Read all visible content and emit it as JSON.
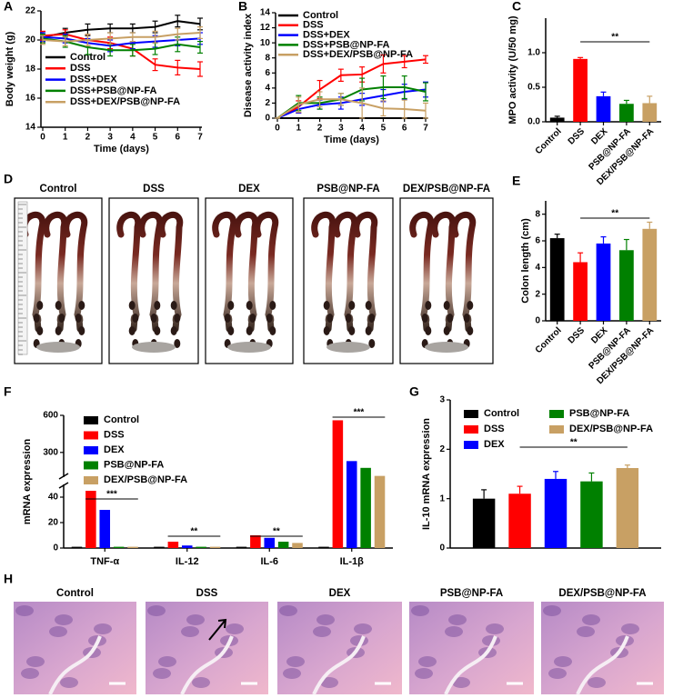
{
  "chart_data": [
    {
      "type": "line",
      "panel_label": "A",
      "x_label": "Time (days)",
      "y_label": "Body weight (g)",
      "x": [
        0,
        1,
        2,
        3,
        4,
        5,
        6,
        7
      ],
      "xlim": [
        0,
        7
      ],
      "xticks": [
        0,
        1,
        2,
        3,
        4,
        5,
        6,
        7
      ],
      "ylim": [
        14,
        22
      ],
      "yticks": [
        14,
        16,
        18,
        20,
        22
      ],
      "legend": "lower left",
      "series": [
        {
          "name": "Control",
          "color": "#000000",
          "values": [
            20.2,
            20.5,
            20.7,
            20.8,
            20.8,
            20.9,
            21.3,
            21.1
          ],
          "errors": [
            0.3,
            0.3,
            0.4,
            0.3,
            0.3,
            0.4,
            0.4,
            0.4
          ]
        },
        {
          "name": "DSS",
          "color": "#ff0000",
          "values": [
            20.3,
            20.4,
            20.0,
            19.8,
            19.4,
            18.3,
            18.1,
            18.0
          ],
          "errors": [
            0.3,
            0.3,
            0.4,
            0.4,
            0.5,
            0.4,
            0.5,
            0.5
          ]
        },
        {
          "name": "DSS+DEX",
          "color": "#0000ff",
          "values": [
            20.2,
            20.1,
            19.8,
            19.6,
            19.8,
            19.9,
            20.0,
            20.1
          ],
          "errors": [
            0.3,
            0.3,
            0.3,
            0.4,
            0.4,
            0.4,
            0.4,
            0.4
          ]
        },
        {
          "name": "DSS+PSB@NP-FA",
          "color": "#008000",
          "values": [
            20.1,
            19.9,
            19.5,
            19.3,
            19.3,
            19.4,
            19.7,
            19.5
          ],
          "errors": [
            0.3,
            0.4,
            0.5,
            0.4,
            0.4,
            0.4,
            0.5,
            0.4
          ]
        },
        {
          "name": "DSS+DEX/PSB@NP-FA",
          "color": "#c8a064",
          "values": [
            20.0,
            19.9,
            20.0,
            20.1,
            20.2,
            20.2,
            20.4,
            20.5
          ],
          "errors": [
            0.3,
            0.3,
            0.4,
            0.4,
            0.3,
            0.4,
            0.4,
            0.4
          ]
        }
      ]
    },
    {
      "type": "line",
      "panel_label": "B",
      "x_label": "Time (days)",
      "y_label": "Disease activity index",
      "x": [
        0,
        1,
        2,
        3,
        4,
        5,
        6,
        7
      ],
      "xlim": [
        0,
        7
      ],
      "xticks": [
        0,
        1,
        2,
        3,
        4,
        5,
        6,
        7
      ],
      "ylim": [
        0,
        14
      ],
      "yticks": [
        0,
        2,
        4,
        6,
        8,
        10,
        12,
        14
      ],
      "legend": "upper left",
      "series": [
        {
          "name": "Control",
          "color": "#000000",
          "values": [
            0,
            0,
            0,
            0,
            0,
            0,
            0,
            0
          ],
          "errors": [
            0,
            0,
            0,
            0,
            0,
            0,
            0,
            0
          ]
        },
        {
          "name": "DSS",
          "color": "#ff0000",
          "values": [
            0,
            1.5,
            3.8,
            5.7,
            5.8,
            7.2,
            7.5,
            7.8
          ],
          "errors": [
            0,
            0.8,
            1.2,
            0.8,
            1.0,
            1.2,
            0.8,
            0.5
          ]
        },
        {
          "name": "DSS+DEX",
          "color": "#0000ff",
          "values": [
            0,
            1.2,
            1.8,
            2.0,
            2.5,
            3.0,
            3.5,
            3.8
          ],
          "errors": [
            0,
            0.5,
            0.6,
            0.8,
            0.8,
            0.8,
            1.0,
            1.0
          ]
        },
        {
          "name": "DSS+PSB@NP-FA",
          "color": "#008000",
          "values": [
            0,
            2.0,
            2.0,
            2.5,
            3.8,
            4.1,
            4.1,
            3.5
          ],
          "errors": [
            0,
            1.0,
            0.8,
            0.8,
            1.5,
            1.5,
            1.5,
            1.2
          ]
        },
        {
          "name": "DSS+DEX/PSB@NP-FA",
          "color": "#c8a064",
          "values": [
            0,
            1.8,
            2.5,
            2.5,
            2.0,
            1.3,
            1.2,
            1.0
          ],
          "errors": [
            0,
            1.0,
            1.0,
            0.8,
            2.0,
            1.0,
            1.2,
            1.0
          ]
        }
      ]
    },
    {
      "type": "bar",
      "panel_label": "C",
      "y_label": "MPO activity (U/50 mg)",
      "categories": [
        "Control",
        "DSS",
        "DEX",
        "PSB@NP-FA",
        "DEX/PSB@NP-FA"
      ],
      "values": [
        0.06,
        0.91,
        0.37,
        0.26,
        0.27
      ],
      "errors": [
        0.02,
        0.02,
        0.06,
        0.05,
        0.1
      ],
      "colors": [
        "#000000",
        "#ff0000",
        "#0000ff",
        "#008000",
        "#c8a064"
      ],
      "ylim": [
        0,
        1.5
      ],
      "yticks": [
        {
          "value": 0,
          "label": "0.0"
        },
        0.5,
        {
          "value": 1,
          "label": "1.0"
        }
      ],
      "significance": "**"
    },
    {
      "type": "bar",
      "panel_label": "E",
      "y_label": "Colon length (cm)",
      "categories": [
        "Control",
        "DSS",
        "DEX",
        "PSB@NP-FA",
        "DEX/PSB@NP-FA"
      ],
      "values": [
        6.2,
        4.4,
        5.8,
        5.3,
        6.9
      ],
      "errors": [
        0.3,
        0.7,
        0.5,
        0.8,
        0.5
      ],
      "colors": [
        "#000000",
        "#ff0000",
        "#0000ff",
        "#008000",
        "#c8a064"
      ],
      "ylim": [
        0,
        9
      ],
      "yticks": [
        0,
        2,
        4,
        6,
        8
      ],
      "significance": "**"
    },
    {
      "type": "grouped_bar",
      "panel_label": "F",
      "y_label": "mRNA expression",
      "categories": [
        "TNF-α",
        "IL-12",
        "IL-6",
        "IL-1β"
      ],
      "ylim": [
        0,
        600
      ],
      "ybreak": [
        50,
        100
      ],
      "yticks": [
        0,
        20,
        40,
        300,
        600
      ],
      "legend": "upper left",
      "series": [
        {
          "name": "Control",
          "color": "#000000",
          "values": [
            1,
            1,
            1,
            1
          ]
        },
        {
          "name": "DSS",
          "color": "#ff0000",
          "values": [
            45,
            5,
            10,
            560
          ]
        },
        {
          "name": "DEX",
          "color": "#0000ff",
          "values": [
            30,
            2,
            8,
            230
          ]
        },
        {
          "name": "PSB@NP-FA",
          "color": "#008000",
          "values": [
            1,
            1,
            5,
            175
          ]
        },
        {
          "name": "DEX/PSB@NP-FA",
          "color": "#c8a064",
          "values": [
            1,
            1,
            4,
            110
          ]
        }
      ],
      "significance": [
        "***",
        "**",
        "**",
        "***"
      ]
    },
    {
      "type": "grouped_bar",
      "panel_label": "G",
      "y_label": "IL-10 mRNA expression",
      "ylim": [
        0,
        3
      ],
      "yticks": [
        0,
        1,
        2,
        3
      ],
      "legend": "top",
      "series": [
        {
          "name": "Control",
          "color": "#000000",
          "values": [
            1.0
          ],
          "errors": [
            0.18
          ]
        },
        {
          "name": "DSS",
          "color": "#ff0000",
          "values": [
            1.1
          ],
          "errors": [
            0.15
          ]
        },
        {
          "name": "DEX",
          "color": "#0000ff",
          "values": [
            1.4
          ],
          "errors": [
            0.15
          ]
        },
        {
          "name": "PSB@NP-FA",
          "color": "#008000",
          "values": [
            1.35
          ],
          "errors": [
            0.17
          ]
        },
        {
          "name": "DEX/PSB@NP-FA",
          "color": "#c8a064",
          "values": [
            1.62
          ],
          "errors": [
            0.06
          ]
        }
      ],
      "significance": "**"
    }
  ],
  "photo_panels": [
    {
      "panel_label": "D",
      "labels": [
        "Control",
        "DSS",
        "DEX",
        "PSB@NP-FA",
        "DEX/PSB@NP-FA"
      ]
    },
    {
      "panel_label": "H",
      "labels": [
        "Control",
        "DSS",
        "DEX",
        "PSB@NP-FA",
        "DEX/PSB@NP-FA"
      ]
    }
  ]
}
